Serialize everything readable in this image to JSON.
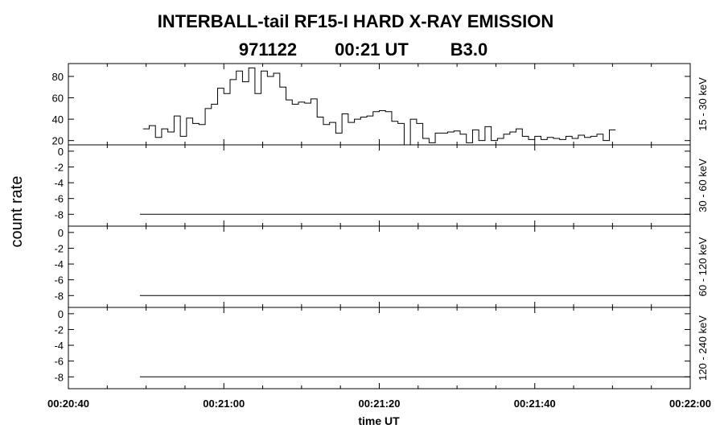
{
  "title": "INTERBALL-tail  RF15-I  HARD  X-RAY  EMISSION",
  "subtitle": {
    "date": "971122",
    "time": "00:21 UT",
    "flare_class": "B3.0"
  },
  "chart_data": {
    "type": "line",
    "xlabel": "time UT",
    "ylabel": "count rate",
    "x_ticks": [
      "00:20:40",
      "00:21:00",
      "00:21:20",
      "00:21:40",
      "00:22:00"
    ],
    "x_range_seconds": [
      40,
      120
    ],
    "x_minor_step_seconds": 5,
    "panels": [
      {
        "name": "15 - 30 keV",
        "style": "step",
        "ylim": [
          16,
          92
        ],
        "yticks": [
          "20",
          "40",
          "60",
          "80"
        ],
        "ytick_values": [
          20,
          40,
          60,
          80
        ],
        "x_start": 49.6,
        "x_step": 0.8,
        "values": [
          31,
          34,
          23,
          31,
          28,
          43,
          24,
          41,
          36,
          35,
          50,
          54,
          69,
          64,
          77,
          85,
          75,
          88,
          64,
          85,
          80,
          83,
          70,
          58,
          54,
          56,
          55,
          59,
          42,
          35,
          37,
          27,
          45,
          37,
          40,
          42,
          43,
          47,
          48,
          47,
          38,
          36,
          16,
          40,
          36,
          22,
          18,
          27,
          27,
          28,
          29,
          26,
          18,
          30,
          20,
          33,
          20,
          22,
          26,
          28,
          31,
          24,
          21,
          24,
          21,
          23,
          22,
          21,
          24,
          22,
          25,
          23,
          24,
          26,
          20,
          30
        ]
      },
      {
        "name": "30 - 60 keV",
        "style": "flat",
        "ylim": [
          -9.5,
          0.8
        ],
        "yticks": [
          "-8",
          "-6",
          "-4",
          "-2",
          "0"
        ],
        "ytick_values": [
          -8,
          -6,
          -4,
          -2,
          0
        ],
        "x_start": 49.2,
        "x_end": 120,
        "value": -8
      },
      {
        "name": "60 - 120 keV",
        "style": "flat",
        "ylim": [
          -9.5,
          0.8
        ],
        "yticks": [
          "-8",
          "-6",
          "-4",
          "-2",
          "0"
        ],
        "ytick_values": [
          -8,
          -6,
          -4,
          -2,
          0
        ],
        "x_start": 49.2,
        "x_end": 120,
        "value": -8
      },
      {
        "name": "120 - 240 keV",
        "style": "flat",
        "ylim": [
          -9.5,
          0.8
        ],
        "yticks": [
          "-8",
          "-6",
          "-4",
          "-2",
          "0"
        ],
        "ytick_values": [
          -8,
          -6,
          -4,
          -2,
          0
        ],
        "x_start": 49.2,
        "x_end": 120,
        "value": -8
      }
    ]
  }
}
